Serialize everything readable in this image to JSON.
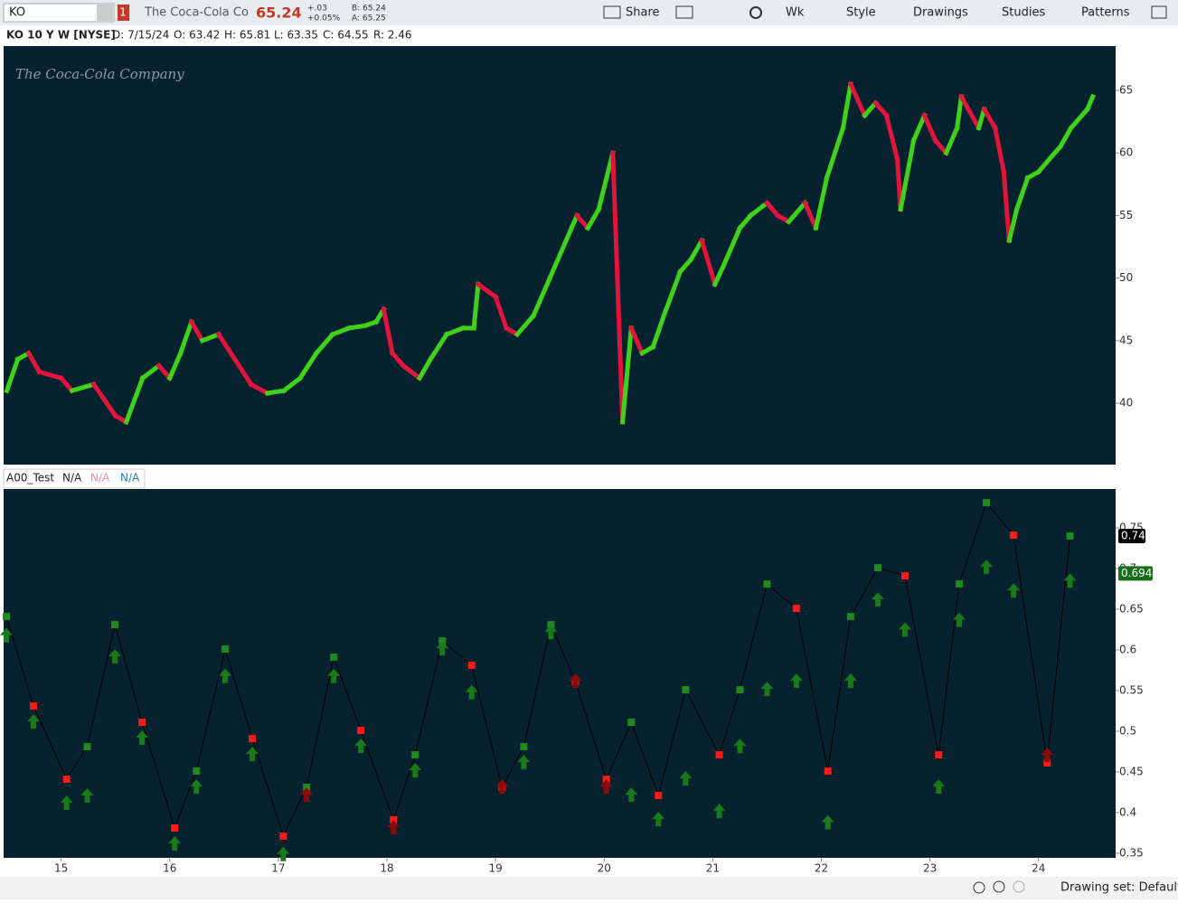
{
  "toolbar": {
    "symbol": "KO",
    "badge": "1",
    "company": "The Coca-Cola Co",
    "last": "65.24",
    "change": "+.03",
    "change_pct": "+0.05%",
    "bid": "B: 65.24",
    "ask": "A: 65.25",
    "buttons": [
      "Share",
      "Wk",
      "Style",
      "Drawings",
      "Studies",
      "Patterns"
    ]
  },
  "header": {
    "title": "KO 10 Y W [NYSE]",
    "fields": [
      "D: 7/15/24",
      "O: 63.42",
      "H: 65.81",
      "L: 63.35",
      "C: 64.55",
      "R: 2.46"
    ]
  },
  "watermark": "The Coca-Cola Company",
  "study_header": [
    "A00_Test",
    "N/A",
    "N/A",
    "N/A"
  ],
  "footer": {
    "drawing_set": "Drawing set: Default"
  },
  "chart_data": [
    {
      "type": "line",
      "x": [
        14.5,
        14.6,
        14.7,
        14.8,
        15.0,
        15.1,
        15.3,
        15.5,
        15.6,
        15.75,
        15.9,
        16.0,
        16.1,
        16.2,
        16.3,
        16.45,
        16.6,
        16.75,
        16.9,
        17.05,
        17.2,
        17.35,
        17.5,
        17.65,
        17.8,
        17.9,
        17.97,
        18.05,
        18.15,
        18.3,
        18.4,
        18.55,
        18.7,
        18.8,
        18.84,
        19.0,
        19.1,
        19.2,
        19.35,
        19.5,
        19.7,
        19.75,
        19.85,
        19.95,
        20.08,
        20.17,
        20.25,
        20.35,
        20.45,
        20.55,
        20.7,
        20.8,
        20.9,
        21.02,
        21.1,
        21.25,
        21.35,
        21.5,
        21.6,
        21.7,
        21.85,
        21.95,
        22.05,
        22.2,
        22.27,
        22.4,
        22.5,
        22.6,
        22.7,
        22.73,
        22.85,
        22.95,
        23.05,
        23.15,
        23.25,
        23.29,
        23.45,
        23.5,
        23.6,
        23.68,
        23.73,
        23.8,
        23.9,
        24.0,
        24.1,
        24.2,
        24.3,
        24.45,
        24.5
      ],
      "series": [
        {
          "up_color": "#3fd11c",
          "down_color": "#e0143c",
          "values": [
            41,
            43.5,
            44,
            42.5,
            42,
            41,
            41.5,
            39,
            38.5,
            42,
            43,
            42,
            44,
            46.5,
            45,
            45.5,
            43.5,
            41.5,
            40.8,
            41,
            42,
            44,
            45.5,
            46,
            46.2,
            46.5,
            47.5,
            44,
            43,
            42,
            43.5,
            45.5,
            46,
            46,
            49.5,
            48.5,
            46,
            45.5,
            47,
            50,
            54,
            55,
            54,
            55.5,
            60,
            38.5,
            46,
            44,
            44.5,
            47,
            50.5,
            51.5,
            53,
            49.5,
            51,
            54,
            55,
            56,
            55,
            54.5,
            56,
            54,
            58,
            62,
            65.5,
            63,
            64,
            63,
            59.5,
            55.5,
            61,
            63,
            61,
            60,
            62,
            64.5,
            62,
            63.5,
            62,
            58.5,
            53,
            55.5,
            58,
            58.5,
            59.5,
            60.5,
            62,
            63.5,
            64.5
          ]
        }
      ],
      "xlim": [
        14.47,
        24.71
      ],
      "ylim": [
        35.09,
        68.54
      ],
      "yticks": [
        40,
        45,
        50,
        55,
        60,
        65
      ]
    },
    {
      "type": "line",
      "x": [
        14.495,
        14.745,
        15.05,
        15.24,
        15.495,
        15.745,
        16.045,
        16.245,
        16.51,
        16.76,
        17.045,
        17.26,
        17.51,
        17.76,
        18.06,
        18.26,
        18.51,
        18.78,
        19.06,
        19.26,
        19.51,
        19.735,
        20.02,
        20.25,
        20.5,
        20.75,
        21.06,
        21.25,
        21.5,
        21.77,
        22.06,
        22.27,
        22.52,
        22.77,
        23.08,
        23.27,
        23.52,
        23.77,
        24.08,
        24.29
      ],
      "series": [
        {
          "marker": "square",
          "line_color": "#000000",
          "values": [
            0.641,
            0.531,
            0.441,
            0.481,
            0.631,
            0.511,
            0.381,
            0.451,
            0.601,
            0.491,
            0.371,
            0.431,
            0.591,
            0.501,
            0.391,
            0.471,
            0.611,
            0.581,
            0.431,
            0.481,
            0.631,
            0.561,
            0.441,
            0.511,
            0.421,
            0.551,
            0.471,
            0.551,
            0.681,
            0.651,
            0.451,
            0.641,
            0.701,
            0.691,
            0.471,
            0.681,
            0.781,
            0.741,
            0.461,
            0.74
          ],
          "colors": [
            "#1f8a1f",
            "#ff1a1a",
            "#ff1a1a",
            "#1f8a1f",
            "#1f8a1f",
            "#ff1a1a",
            "#ff1a1a",
            "#1f8a1f",
            "#1f8a1f",
            "#ff1a1a",
            "#ff1a1a",
            "#1f8a1f",
            "#1f8a1f",
            "#ff1a1a",
            "#ff1a1a",
            "#1f8a1f",
            "#1f8a1f",
            "#ff1a1a",
            "#ff1a1a",
            "#1f8a1f",
            "#1f8a1f",
            "#ff1a1a",
            "#ff1a1a",
            "#1f8a1f",
            "#ff1a1a",
            "#1f8a1f",
            "#ff1a1a",
            "#1f8a1f",
            "#1f8a1f",
            "#ff1a1a",
            "#ff1a1a",
            "#1f8a1f",
            "#1f8a1f",
            "#ff1a1a",
            "#ff1a1a",
            "#1f8a1f",
            "#1f8a1f",
            "#ff1a1a",
            "#ff1a1a",
            "#1f8a1f"
          ],
          "label_color": "#000000"
        },
        {
          "marker": "arrow",
          "values": [
            0.627,
            0.521,
            0.421,
            0.43,
            0.601,
            0.501,
            0.371,
            0.441,
            0.577,
            0.481,
            0.358,
            0.431,
            0.577,
            0.491,
            0.391,
            0.461,
            0.611,
            0.557,
            0.441,
            0.471,
            0.631,
            0.571,
            0.441,
            0.431,
            0.401,
            0.451,
            0.411,
            0.491,
            0.561,
            0.571,
            0.397,
            0.571,
            0.671,
            0.634,
            0.441,
            0.646,
            0.711,
            0.682,
            0.48,
            0.694
          ],
          "colors": [
            "#1a7a1a",
            "#1a7a1a",
            "#1a7a1a",
            "#1a7a1a",
            "#1a7a1a",
            "#1a7a1a",
            "#1a7a1a",
            "#1a7a1a",
            "#1a7a1a",
            "#1a7a1a",
            "#1a7a1a",
            "#8b0a0a",
            "#1a7a1a",
            "#1a7a1a",
            "#8b0a0a",
            "#1a7a1a",
            "#1a7a1a",
            "#1a7a1a",
            "#8b0a0a",
            "#1a7a1a",
            "#1a7a1a",
            "#8b0a0a",
            "#8b0a0a",
            "#1a7a1a",
            "#1a7a1a",
            "#1a7a1a",
            "#1a7a1a",
            "#1a7a1a",
            "#1a7a1a",
            "#1a7a1a",
            "#1a7a1a",
            "#1a7a1a",
            "#1a7a1a",
            "#1a7a1a",
            "#1a7a1a",
            "#1a7a1a",
            "#1a7a1a",
            "#1a7a1a",
            "#8b0a0a",
            "#1a7a1a"
          ],
          "label_color": "#1a6e1a"
        }
      ],
      "xlim": [
        14.47,
        24.71
      ],
      "ylim": [
        0.3444,
        0.7978
      ],
      "yticks": [
        0.35,
        0.4,
        0.45,
        0.5,
        0.55,
        0.6,
        0.65,
        0.7,
        0.75
      ],
      "xticks": [
        15,
        16,
        17,
        18,
        19,
        20,
        21,
        22,
        23,
        24
      ]
    }
  ]
}
